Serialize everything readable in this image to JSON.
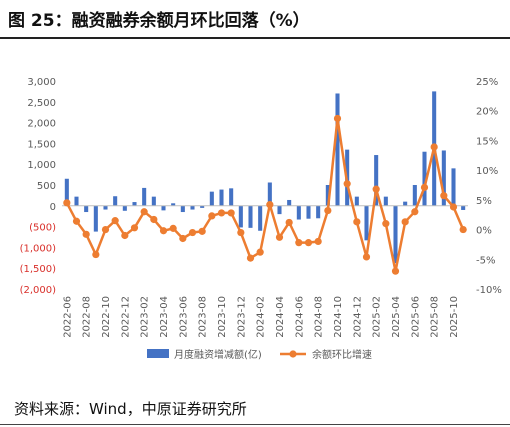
{
  "figure": {
    "title": "图 25：融资融券余额月环比回落（%）",
    "source": "资料来源：Wind，中原证券研究所"
  },
  "colors": {
    "bar": "#4472c4",
    "line": "#ed7d31",
    "negative_tick": "#d9302b",
    "axis_text": "#595959"
  },
  "chart_data": {
    "type": "bar+line",
    "x_tick_labels": [
      "2022-06",
      "2022-08",
      "2022-10",
      "2022-12",
      "2023-02",
      "2023-04",
      "2023-06",
      "2023-08",
      "2023-10",
      "2023-12",
      "2024-02",
      "2024-04",
      "2024-06",
      "2024-08",
      "2024-10",
      "2024-12",
      "2025-02",
      "2025-04",
      "2025-06",
      "2025-08",
      "2025-10"
    ],
    "x": [
      "2022-06",
      "2022-07",
      "2022-08",
      "2022-09",
      "2022-10",
      "2022-11",
      "2022-12",
      "2023-01",
      "2023-02",
      "2023-03",
      "2023-04",
      "2023-05",
      "2023-06",
      "2023-07",
      "2023-08",
      "2023-09",
      "2023-10",
      "2023-11",
      "2023-12",
      "2024-01",
      "2024-02",
      "2024-03",
      "2024-04",
      "2024-05",
      "2024-06",
      "2024-07",
      "2024-08",
      "2024-09",
      "2024-10",
      "2024-11",
      "2024-12",
      "2025-01",
      "2025-02",
      "2025-03",
      "2025-04",
      "2025-05",
      "2025-06",
      "2025-07",
      "2025-08",
      "2025-09",
      "2025-10",
      "2025-11"
    ],
    "y_left": {
      "ylim": [
        -2000,
        3000
      ],
      "ticks": [
        -2000,
        -1500,
        -1000,
        -500,
        0,
        500,
        1000,
        1500,
        2000,
        2500,
        3000
      ],
      "tick_labels": [
        "(2,000)",
        "(1,500)",
        "(1,000)",
        "(500)",
        "0",
        "500",
        "1,000",
        "1,500",
        "2,000",
        "2,500",
        "3,000"
      ]
    },
    "y_right": {
      "ylim": [
        -10,
        25
      ],
      "ticks": [
        -10,
        -5,
        0,
        5,
        10,
        15,
        20,
        25
      ],
      "tick_labels": [
        "-10%",
        "-5%",
        "0%",
        "5%",
        "10%",
        "15%",
        "20%",
        "25%"
      ]
    },
    "series": [
      {
        "name": "月度融资增减额(亿)",
        "type": "bar",
        "axis": "left",
        "values": [
          650,
          220,
          -150,
          -620,
          -90,
          230,
          -120,
          90,
          430,
          220,
          -110,
          60,
          -150,
          -90,
          -50,
          340,
          390,
          420,
          -520,
          -530,
          -600,
          560,
          -200,
          140,
          -330,
          -310,
          -300,
          500,
          2700,
          1350,
          220,
          -830,
          1220,
          220,
          -1380,
          100,
          500,
          1300,
          2750,
          1330,
          900,
          -100
        ]
      },
      {
        "name": "余额环比增速",
        "type": "line",
        "axis": "right",
        "values": [
          4.5,
          1.4,
          -0.8,
          -4.2,
          0.0,
          1.5,
          -1.0,
          0.3,
          3.0,
          1.7,
          -0.2,
          0.2,
          -1.5,
          -0.5,
          -0.3,
          2.3,
          2.8,
          2.8,
          -0.5,
          -4.8,
          -3.8,
          4.2,
          -1.3,
          1.2,
          -2.2,
          -2.2,
          -2.0,
          3.2,
          18.7,
          7.7,
          1.3,
          -4.6,
          6.8,
          1.0,
          -7.0,
          1.3,
          3.0,
          7.1,
          13.9,
          5.7,
          3.8,
          0.0
        ]
      }
    ],
    "grid": false,
    "legend_position": "bottom"
  }
}
